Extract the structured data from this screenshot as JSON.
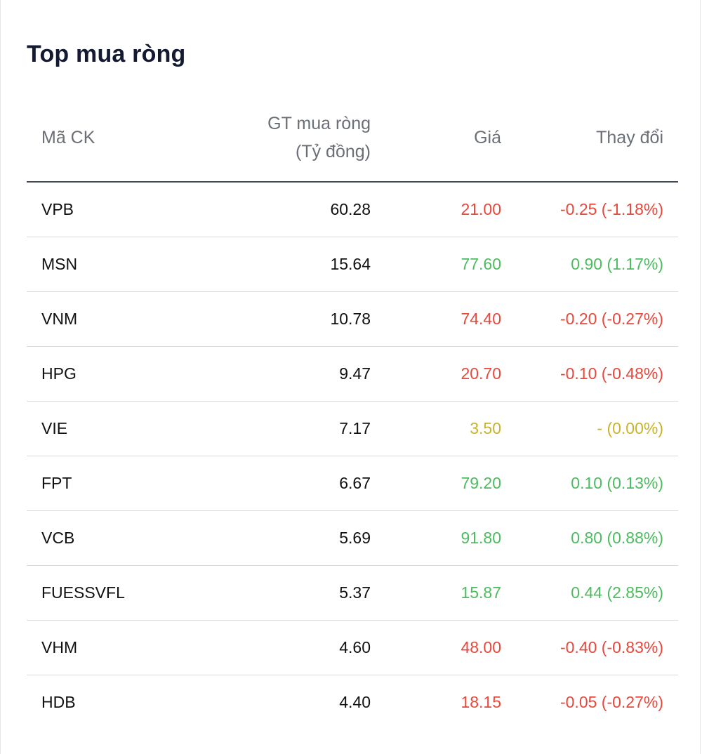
{
  "title": "Top mua ròng",
  "columns": {
    "code": "Mã CK",
    "value_line1": "GT mua ròng",
    "value_line2": "(Tỷ đồng)",
    "price": "Giá",
    "change": "Thay đổi"
  },
  "colors": {
    "up": "#4dbb5f",
    "down": "#e8483c",
    "reference": "#c9b22c"
  },
  "rows": [
    {
      "code": "VPB",
      "value": "60.28",
      "price": "21.00",
      "change": "-0.25 (-1.18%)",
      "trend": "down"
    },
    {
      "code": "MSN",
      "value": "15.64",
      "price": "77.60",
      "change": "0.90 (1.17%)",
      "trend": "up"
    },
    {
      "code": "VNM",
      "value": "10.78",
      "price": "74.40",
      "change": "-0.20 (-0.27%)",
      "trend": "down"
    },
    {
      "code": "HPG",
      "value": "9.47",
      "price": "20.70",
      "change": "-0.10 (-0.48%)",
      "trend": "down"
    },
    {
      "code": "VIE",
      "value": "7.17",
      "price": "3.50",
      "change": "- (0.00%)",
      "trend": "ref"
    },
    {
      "code": "FPT",
      "value": "6.67",
      "price": "79.20",
      "change": "0.10 (0.13%)",
      "trend": "up"
    },
    {
      "code": "VCB",
      "value": "5.69",
      "price": "91.80",
      "change": "0.80 (0.88%)",
      "trend": "up"
    },
    {
      "code": "FUESSVFL",
      "value": "5.37",
      "price": "15.87",
      "change": "0.44 (2.85%)",
      "trend": "up"
    },
    {
      "code": "VHM",
      "value": "4.60",
      "price": "48.00",
      "change": "-0.40 (-0.83%)",
      "trend": "down"
    },
    {
      "code": "HDB",
      "value": "4.40",
      "price": "18.15",
      "change": "-0.05 (-0.27%)",
      "trend": "down"
    }
  ]
}
